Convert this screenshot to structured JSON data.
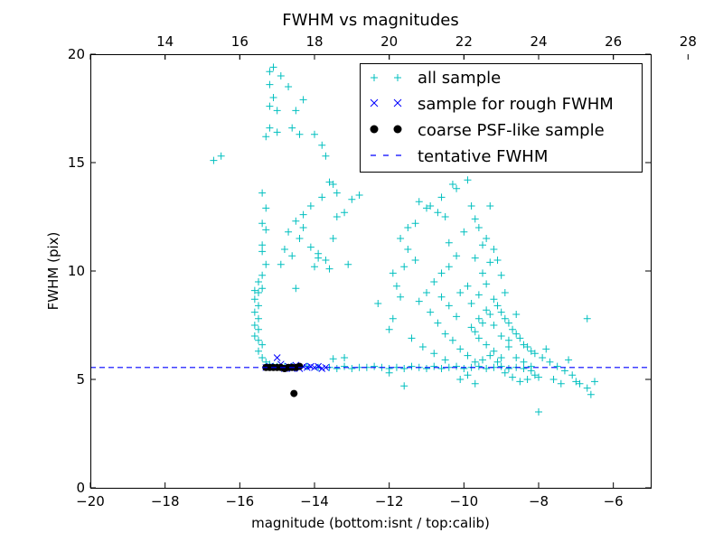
{
  "chart_data": {
    "type": "scatter",
    "title": "FWHM vs magnitudes",
    "xlabel": "magnitude (bottom:isnt / top:calib)",
    "ylabel": "FWHM (pix)",
    "xlim": [
      -20,
      -5
    ],
    "ylim": [
      0,
      20
    ],
    "x_ticks": [
      -20,
      -18,
      -16,
      -14,
      -12,
      -10,
      -8,
      -6
    ],
    "x_tick_labels": [
      "−20",
      "−18",
      "−16",
      "−14",
      "−12",
      "−10",
      "−8",
      "−6"
    ],
    "y_ticks": [
      0,
      5,
      10,
      15,
      20
    ],
    "y_tick_labels": [
      "0",
      "5",
      "10",
      "15",
      "20"
    ],
    "top_axis": {
      "offset": 32,
      "ticks": [
        14,
        16,
        18,
        20,
        22,
        24,
        26,
        28
      ],
      "tick_labels": [
        "14",
        "16",
        "18",
        "20",
        "22",
        "24",
        "26",
        "28"
      ]
    },
    "tentative_fwhm": 5.55,
    "legend": {
      "placement": "top-right",
      "entries": [
        {
          "label": "all sample",
          "marker": "+",
          "color": "#00bfbf"
        },
        {
          "label": "sample for rough FWHM",
          "marker": "x",
          "color": "#0000ff"
        },
        {
          "label": "coarse PSF-like sample",
          "marker": "o",
          "color": "#000000"
        },
        {
          "label": "tentative FWHM",
          "marker": "dashed-line",
          "color": "#0000ff"
        }
      ]
    },
    "series": [
      {
        "name": "all sample",
        "marker": "+",
        "color": "#00bfbf",
        "points": [
          [
            -16.7,
            15.1
          ],
          [
            -16.5,
            15.3
          ],
          [
            -15.2,
            19.2
          ],
          [
            -15.1,
            19.4
          ],
          [
            -15.2,
            18.6
          ],
          [
            -14.9,
            19.0
          ],
          [
            -14.7,
            18.5
          ],
          [
            -15.1,
            18.0
          ],
          [
            -15.2,
            17.6
          ],
          [
            -15.0,
            17.4
          ],
          [
            -15.2,
            16.6
          ],
          [
            -15.3,
            16.2
          ],
          [
            -15.0,
            16.4
          ],
          [
            -14.5,
            17.4
          ],
          [
            -14.3,
            17.9
          ],
          [
            -14.6,
            16.6
          ],
          [
            -14.4,
            16.3
          ],
          [
            -14.0,
            16.3
          ],
          [
            -13.8,
            15.8
          ],
          [
            -13.7,
            15.3
          ],
          [
            -13.6,
            14.1
          ],
          [
            -13.5,
            14.0
          ],
          [
            -13.4,
            13.6
          ],
          [
            -13.8,
            13.4
          ],
          [
            -14.1,
            13.0
          ],
          [
            -14.3,
            12.6
          ],
          [
            -14.5,
            12.3
          ],
          [
            -14.7,
            11.8
          ],
          [
            -14.4,
            11.5
          ],
          [
            -14.1,
            11.1
          ],
          [
            -13.9,
            10.8
          ],
          [
            -13.7,
            10.5
          ],
          [
            -13.5,
            11.5
          ],
          [
            -13.4,
            12.5
          ],
          [
            -13.2,
            12.7
          ],
          [
            -13.0,
            13.3
          ],
          [
            -12.8,
            13.5
          ],
          [
            -14.8,
            11.0
          ],
          [
            -14.9,
            10.3
          ],
          [
            -14.6,
            10.7
          ],
          [
            -14.3,
            12.0
          ],
          [
            -14.5,
            9.2
          ],
          [
            -14.0,
            10.2
          ],
          [
            -13.9,
            10.6
          ],
          [
            -13.6,
            10.1
          ],
          [
            -13.1,
            10.3
          ],
          [
            -15.4,
            13.6
          ],
          [
            -15.3,
            12.9
          ],
          [
            -15.4,
            12.2
          ],
          [
            -15.3,
            11.9
          ],
          [
            -15.4,
            11.2
          ],
          [
            -15.4,
            10.9
          ],
          [
            -15.3,
            10.3
          ],
          [
            -15.4,
            9.8
          ],
          [
            -15.5,
            9.5
          ],
          [
            -15.4,
            9.2
          ],
          [
            -15.6,
            9.1
          ],
          [
            -15.5,
            9.0
          ],
          [
            -15.6,
            8.7
          ],
          [
            -15.5,
            8.4
          ],
          [
            -15.6,
            8.1
          ],
          [
            -15.5,
            7.8
          ],
          [
            -15.6,
            7.5
          ],
          [
            -15.5,
            7.3
          ],
          [
            -15.6,
            7.0
          ],
          [
            -15.5,
            6.8
          ],
          [
            -15.4,
            6.6
          ],
          [
            -15.5,
            6.3
          ],
          [
            -15.4,
            6.0
          ],
          [
            -15.3,
            5.8
          ],
          [
            -15.2,
            5.7
          ],
          [
            -15.1,
            5.6
          ],
          [
            -15.0,
            5.6
          ],
          [
            -14.8,
            5.6
          ],
          [
            -14.6,
            5.6
          ],
          [
            -14.2,
            5.6
          ],
          [
            -13.9,
            5.55
          ],
          [
            -13.6,
            5.55
          ],
          [
            -13.4,
            5.5
          ],
          [
            -13.2,
            5.6
          ],
          [
            -13.0,
            5.5
          ],
          [
            -12.8,
            5.55
          ],
          [
            -12.6,
            5.55
          ],
          [
            -12.4,
            5.6
          ],
          [
            -12.2,
            5.55
          ],
          [
            -12.0,
            5.5
          ],
          [
            -11.8,
            5.55
          ],
          [
            -11.6,
            5.5
          ],
          [
            -11.4,
            5.6
          ],
          [
            -11.2,
            5.55
          ],
          [
            -11.0,
            5.5
          ],
          [
            -10.8,
            5.6
          ],
          [
            -10.6,
            5.5
          ],
          [
            -10.4,
            5.55
          ],
          [
            -10.2,
            5.6
          ],
          [
            -10.0,
            5.5
          ],
          [
            -9.8,
            5.55
          ],
          [
            -9.6,
            5.6
          ],
          [
            -9.4,
            5.5
          ],
          [
            -9.2,
            5.55
          ],
          [
            -9.0,
            5.6
          ],
          [
            -8.8,
            5.5
          ],
          [
            -8.6,
            5.55
          ],
          [
            -8.4,
            5.5
          ],
          [
            -8.2,
            5.6
          ],
          [
            -13.5,
            5.95
          ],
          [
            -13.2,
            6.0
          ],
          [
            -12.0,
            5.3
          ],
          [
            -11.6,
            4.7
          ],
          [
            -12.3,
            8.5
          ],
          [
            -12.0,
            7.3
          ],
          [
            -11.9,
            7.8
          ],
          [
            -11.8,
            9.3
          ],
          [
            -11.6,
            10.2
          ],
          [
            -11.5,
            11.0
          ],
          [
            -11.7,
            11.5
          ],
          [
            -11.3,
            12.2
          ],
          [
            -11.2,
            13.2
          ],
          [
            -11.0,
            12.9
          ],
          [
            -10.9,
            13.0
          ],
          [
            -10.7,
            12.7
          ],
          [
            -10.6,
            13.4
          ],
          [
            -10.5,
            12.5
          ],
          [
            -10.4,
            11.3
          ],
          [
            -10.3,
            14.0
          ],
          [
            -10.2,
            13.8
          ],
          [
            -10.1,
            14.8
          ],
          [
            -10.0,
            15.3
          ],
          [
            -9.9,
            14.2
          ],
          [
            -9.8,
            13.0
          ],
          [
            -9.7,
            12.4
          ],
          [
            -9.6,
            12.0
          ],
          [
            -9.5,
            11.2
          ],
          [
            -9.4,
            11.5
          ],
          [
            -9.3,
            13.0
          ],
          [
            -9.2,
            11.0
          ],
          [
            -9.1,
            10.5
          ],
          [
            -9.0,
            9.8
          ],
          [
            -8.9,
            9.0
          ],
          [
            -10.0,
            11.8
          ],
          [
            -10.2,
            10.7
          ],
          [
            -10.4,
            10.2
          ],
          [
            -10.6,
            9.9
          ],
          [
            -10.8,
            9.5
          ],
          [
            -11.0,
            9.0
          ],
          [
            -11.2,
            8.6
          ],
          [
            -10.9,
            8.1
          ],
          [
            -10.7,
            7.6
          ],
          [
            -10.5,
            7.1
          ],
          [
            -10.3,
            6.8
          ],
          [
            -10.1,
            6.4
          ],
          [
            -9.9,
            6.1
          ],
          [
            -9.7,
            7.2
          ],
          [
            -9.5,
            7.6
          ],
          [
            -9.3,
            8.0
          ],
          [
            -9.1,
            8.4
          ],
          [
            -8.9,
            7.8
          ],
          [
            -8.7,
            7.3
          ],
          [
            -8.5,
            6.9
          ],
          [
            -8.3,
            6.5
          ],
          [
            -8.1,
            6.2
          ],
          [
            -7.9,
            6.0
          ],
          [
            -7.7,
            5.8
          ],
          [
            -7.5,
            5.6
          ],
          [
            -7.3,
            5.4
          ],
          [
            -7.1,
            5.2
          ],
          [
            -6.9,
            4.8
          ],
          [
            -6.7,
            4.6
          ],
          [
            -6.5,
            4.9
          ],
          [
            -9.6,
            6.9
          ],
          [
            -9.4,
            6.6
          ],
          [
            -9.2,
            6.3
          ],
          [
            -9.0,
            6.0
          ],
          [
            -8.8,
            6.8
          ],
          [
            -8.6,
            7.1
          ],
          [
            -8.4,
            6.6
          ],
          [
            -8.2,
            6.3
          ],
          [
            -9.8,
            8.5
          ],
          [
            -9.6,
            8.9
          ],
          [
            -9.4,
            9.4
          ],
          [
            -9.2,
            8.7
          ],
          [
            -9.0,
            8.1
          ],
          [
            -10.2,
            7.9
          ],
          [
            -10.4,
            8.4
          ],
          [
            -10.6,
            8.8
          ],
          [
            -11.4,
            6.9
          ],
          [
            -11.1,
            6.5
          ],
          [
            -10.8,
            6.2
          ],
          [
            -10.5,
            5.9
          ],
          [
            -9.7,
            5.8
          ],
          [
            -9.5,
            5.9
          ],
          [
            -9.3,
            6.1
          ],
          [
            -9.1,
            5.8
          ],
          [
            -8.9,
            5.3
          ],
          [
            -8.7,
            5.1
          ],
          [
            -8.5,
            4.9
          ],
          [
            -8.3,
            5.0
          ],
          [
            -8.1,
            5.2
          ],
          [
            -9.9,
            5.2
          ],
          [
            -10.1,
            5.0
          ],
          [
            -9.7,
            4.8
          ],
          [
            -8.0,
            3.5
          ],
          [
            -6.7,
            7.8
          ],
          [
            -6.6,
            4.3
          ],
          [
            -7.2,
            5.9
          ],
          [
            -7.8,
            6.4
          ],
          [
            -9.5,
            9.9
          ],
          [
            -9.3,
            10.4
          ],
          [
            -9.7,
            10.6
          ],
          [
            -9.9,
            9.3
          ],
          [
            -10.1,
            9.0
          ],
          [
            -8.8,
            6.5
          ],
          [
            -8.6,
            6.0
          ],
          [
            -8.4,
            5.8
          ],
          [
            -8.2,
            5.4
          ],
          [
            -8.0,
            5.1
          ],
          [
            -7.6,
            5.0
          ],
          [
            -7.4,
            4.8
          ],
          [
            -7.0,
            4.9
          ],
          [
            -11.5,
            12.0
          ],
          [
            -11.3,
            10.5
          ],
          [
            -11.9,
            9.9
          ],
          [
            -11.7,
            8.8
          ],
          [
            -9.8,
            7.4
          ],
          [
            -9.6,
            7.8
          ],
          [
            -9.4,
            8.2
          ],
          [
            -9.2,
            7.5
          ],
          [
            -9.0,
            7.0
          ],
          [
            -8.8,
            7.6
          ],
          [
            -8.6,
            8.0
          ]
        ]
      },
      {
        "name": "sample for rough FWHM",
        "marker": "x",
        "color": "#0000ff",
        "points": [
          [
            -15.0,
            6.0
          ],
          [
            -14.9,
            5.7
          ],
          [
            -14.7,
            5.6
          ],
          [
            -14.5,
            5.65
          ],
          [
            -14.4,
            5.5
          ],
          [
            -14.3,
            5.6
          ],
          [
            -14.2,
            5.55
          ],
          [
            -14.1,
            5.6
          ],
          [
            -14.0,
            5.55
          ],
          [
            -13.9,
            5.6
          ],
          [
            -13.8,
            5.5
          ],
          [
            -13.7,
            5.55
          ],
          [
            -14.6,
            5.5
          ],
          [
            -14.8,
            5.5
          ],
          [
            -15.2,
            5.6
          ],
          [
            -15.3,
            5.55
          ]
        ]
      },
      {
        "name": "coarse PSF-like sample",
        "marker": "o",
        "color": "#000000",
        "points": [
          [
            -15.3,
            5.55
          ],
          [
            -15.2,
            5.55
          ],
          [
            -15.1,
            5.55
          ],
          [
            -15.0,
            5.55
          ],
          [
            -14.9,
            5.55
          ],
          [
            -14.8,
            5.5
          ],
          [
            -14.7,
            5.55
          ],
          [
            -14.6,
            5.55
          ],
          [
            -14.5,
            5.55
          ],
          [
            -14.4,
            5.6
          ],
          [
            -14.55,
            4.35
          ]
        ]
      }
    ]
  }
}
